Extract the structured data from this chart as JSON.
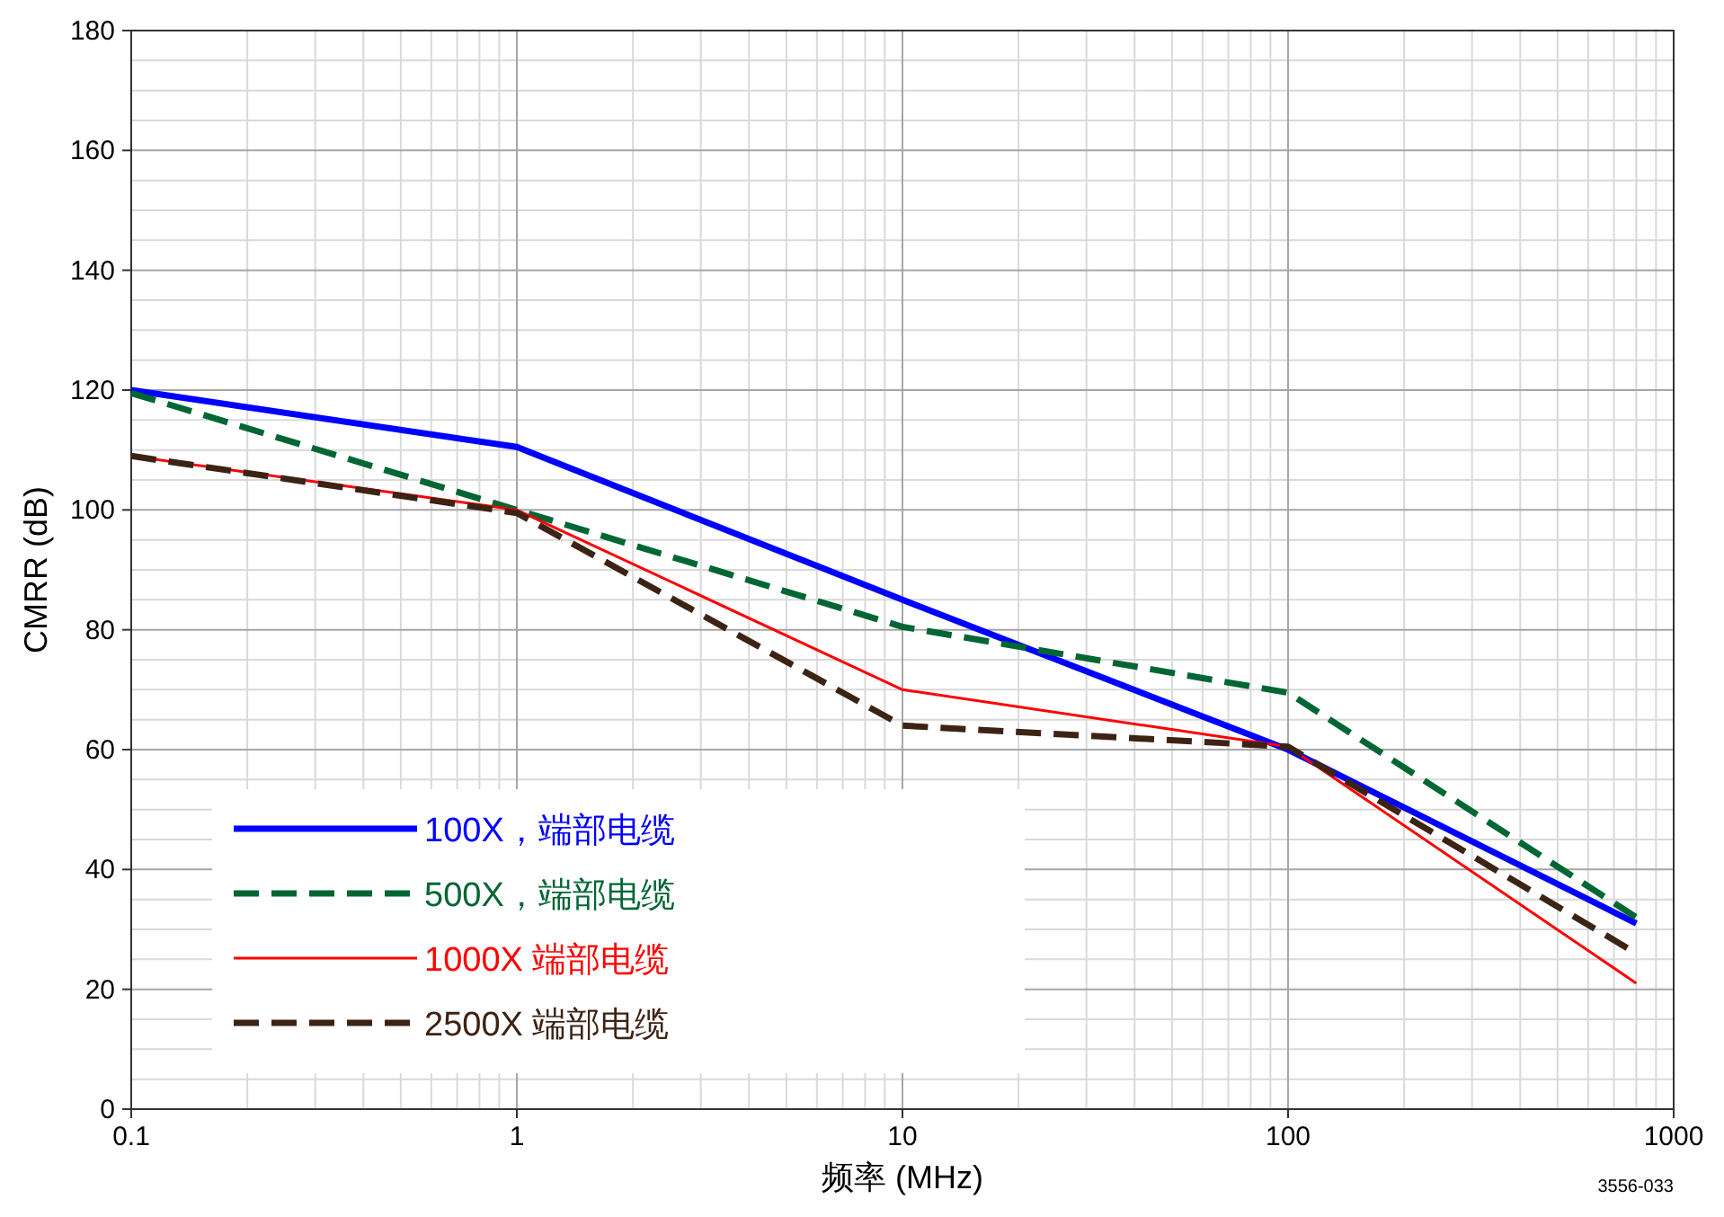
{
  "chart_data": {
    "type": "line",
    "xlabel": "频率 (MHz)",
    "ylabel": "CMRR (dB)",
    "log": "x",
    "grid": true,
    "legend": "bottom left",
    "x": [
      0.1,
      1,
      10,
      100,
      800
    ],
    "xlim": [
      0.1,
      1000
    ],
    "xticks": [
      0.1,
      1,
      10,
      100,
      1000
    ],
    "ylim": [
      0,
      180
    ],
    "yticks": [
      0,
      20,
      40,
      60,
      80,
      100,
      120,
      140,
      160,
      180
    ],
    "series": [
      {
        "name": "100X，端部电缆",
        "color": "#0000ff",
        "line_style": "solid",
        "values": [
          120,
          110.5,
          85,
          60,
          31
        ]
      },
      {
        "name": "500X，端部电缆",
        "color": "#006633",
        "line_style": "dashed",
        "values": [
          119.5,
          100,
          80.5,
          69.5,
          32
        ]
      },
      {
        "name": "1000X 端部电缆",
        "color": "#ff0000",
        "line_style": "solid",
        "values": [
          109,
          100,
          70,
          60.5,
          21
        ]
      },
      {
        "name": "2500X 端部电缆",
        "color": "#3d2314",
        "line_style": "dashed",
        "values": [
          109,
          99.5,
          64,
          60.5,
          26
        ]
      }
    ],
    "annotations": [
      "3556-033"
    ]
  }
}
